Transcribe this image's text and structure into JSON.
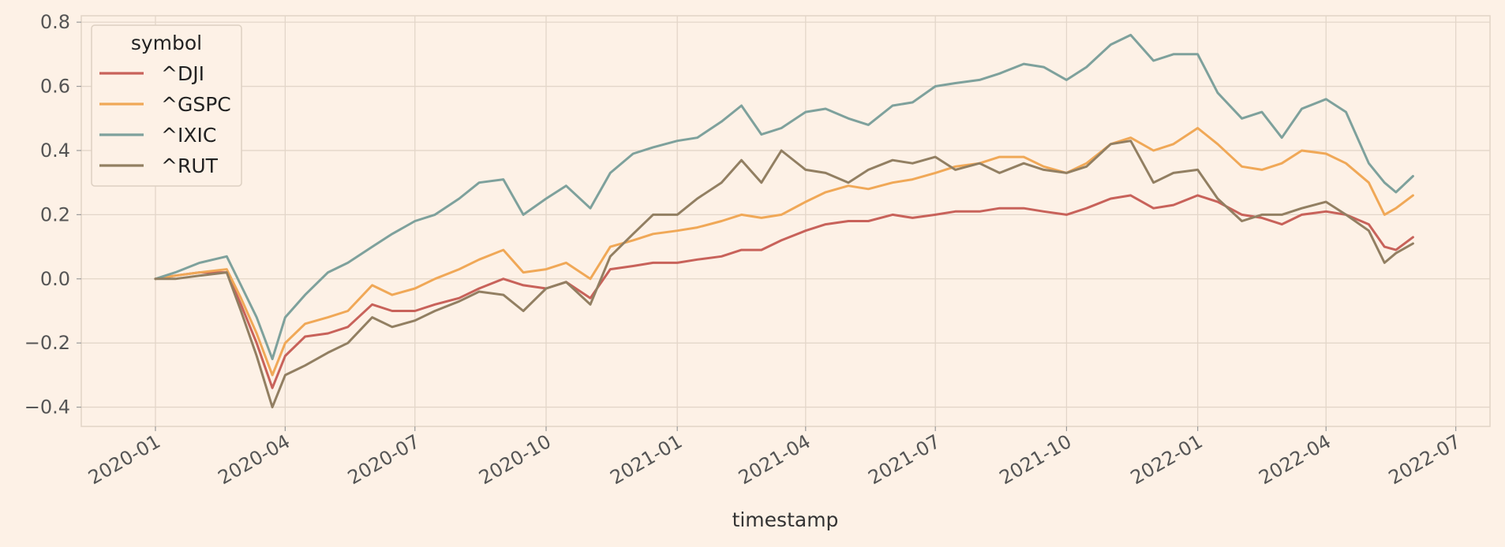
{
  "chart_data": {
    "type": "line",
    "title": "",
    "xlabel": "timestamp",
    "ylabel": "",
    "x_range": [
      "2019-11-10",
      "2022-07-25"
    ],
    "ylim": [
      -0.46,
      0.82
    ],
    "grid": true,
    "legend_position": "top-left",
    "legend_title": "symbol",
    "x_ticks": [
      "2020-01",
      "2020-04",
      "2020-07",
      "2020-10",
      "2021-01",
      "2021-04",
      "2021-07",
      "2021-10",
      "2022-01",
      "2022-04",
      "2022-07"
    ],
    "y_ticks": [
      -0.4,
      -0.2,
      0.0,
      0.2,
      0.4,
      0.6,
      0.8
    ],
    "y_tick_labels": [
      "−0.4",
      "−0.2",
      "0.0",
      "0.2",
      "0.4",
      "0.6",
      "0.8"
    ],
    "dates": [
      "2020-01-01",
      "2020-01-15",
      "2020-02-01",
      "2020-02-20",
      "2020-03-01",
      "2020-03-12",
      "2020-03-23",
      "2020-04-01",
      "2020-04-15",
      "2020-05-01",
      "2020-05-15",
      "2020-06-01",
      "2020-06-15",
      "2020-07-01",
      "2020-07-15",
      "2020-08-01",
      "2020-08-15",
      "2020-09-01",
      "2020-09-15",
      "2020-10-01",
      "2020-10-15",
      "2020-11-01",
      "2020-11-15",
      "2020-12-01",
      "2020-12-15",
      "2021-01-01",
      "2021-01-15",
      "2021-02-01",
      "2021-02-15",
      "2021-03-01",
      "2021-03-15",
      "2021-04-01",
      "2021-04-15",
      "2021-05-01",
      "2021-05-15",
      "2021-06-01",
      "2021-06-15",
      "2021-07-01",
      "2021-07-15",
      "2021-08-01",
      "2021-08-15",
      "2021-09-01",
      "2021-09-15",
      "2021-10-01",
      "2021-10-15",
      "2021-11-01",
      "2021-11-15",
      "2021-12-01",
      "2021-12-15",
      "2022-01-01",
      "2022-01-15",
      "2022-02-01",
      "2022-02-15",
      "2022-03-01",
      "2022-03-15",
      "2022-04-01",
      "2022-04-15",
      "2022-05-01",
      "2022-05-12",
      "2022-05-20",
      "2022-06-01"
    ],
    "series": [
      {
        "name": "^DJI",
        "color": "#c8625a",
        "values": [
          0.0,
          0.01,
          0.02,
          0.02,
          -0.08,
          -0.2,
          -0.34,
          -0.24,
          -0.18,
          -0.17,
          -0.15,
          -0.08,
          -0.1,
          -0.1,
          -0.08,
          -0.06,
          -0.03,
          0.0,
          -0.02,
          -0.03,
          -0.01,
          -0.06,
          0.03,
          0.04,
          0.05,
          0.05,
          0.06,
          0.07,
          0.09,
          0.09,
          0.12,
          0.15,
          0.17,
          0.18,
          0.18,
          0.2,
          0.19,
          0.2,
          0.21,
          0.21,
          0.22,
          0.22,
          0.21,
          0.2,
          0.22,
          0.25,
          0.26,
          0.22,
          0.23,
          0.26,
          0.24,
          0.2,
          0.19,
          0.17,
          0.2,
          0.21,
          0.2,
          0.17,
          0.1,
          0.09,
          0.13
        ]
      },
      {
        "name": "^GSPC",
        "color": "#f0a857",
        "values": [
          0.0,
          0.01,
          0.02,
          0.03,
          -0.06,
          -0.17,
          -0.3,
          -0.2,
          -0.14,
          -0.12,
          -0.1,
          -0.02,
          -0.05,
          -0.03,
          0.0,
          0.03,
          0.06,
          0.09,
          0.02,
          0.03,
          0.05,
          0.0,
          0.1,
          0.12,
          0.14,
          0.15,
          0.16,
          0.18,
          0.2,
          0.19,
          0.2,
          0.24,
          0.27,
          0.29,
          0.28,
          0.3,
          0.31,
          0.33,
          0.35,
          0.36,
          0.38,
          0.38,
          0.35,
          0.33,
          0.36,
          0.42,
          0.44,
          0.4,
          0.42,
          0.47,
          0.42,
          0.35,
          0.34,
          0.36,
          0.4,
          0.39,
          0.36,
          0.3,
          0.2,
          0.22,
          0.26
        ]
      },
      {
        "name": "^IXIC",
        "color": "#7ea19c",
        "values": [
          0.0,
          0.02,
          0.05,
          0.07,
          -0.02,
          -0.12,
          -0.25,
          -0.12,
          -0.05,
          0.02,
          0.05,
          0.1,
          0.14,
          0.18,
          0.2,
          0.25,
          0.3,
          0.31,
          0.2,
          0.25,
          0.29,
          0.22,
          0.33,
          0.39,
          0.41,
          0.43,
          0.44,
          0.49,
          0.54,
          0.45,
          0.47,
          0.52,
          0.53,
          0.5,
          0.48,
          0.54,
          0.55,
          0.6,
          0.61,
          0.62,
          0.64,
          0.67,
          0.66,
          0.62,
          0.66,
          0.73,
          0.76,
          0.68,
          0.7,
          0.7,
          0.58,
          0.5,
          0.52,
          0.44,
          0.53,
          0.56,
          0.52,
          0.36,
          0.3,
          0.27,
          0.32
        ]
      },
      {
        "name": "^RUT",
        "color": "#927f62",
        "values": [
          0.0,
          0.0,
          0.01,
          0.02,
          -0.1,
          -0.24,
          -0.4,
          -0.3,
          -0.27,
          -0.23,
          -0.2,
          -0.12,
          -0.15,
          -0.13,
          -0.1,
          -0.07,
          -0.04,
          -0.05,
          -0.1,
          -0.03,
          -0.01,
          -0.08,
          0.07,
          0.14,
          0.2,
          0.2,
          0.25,
          0.3,
          0.37,
          0.3,
          0.4,
          0.34,
          0.33,
          0.3,
          0.34,
          0.37,
          0.36,
          0.38,
          0.34,
          0.36,
          0.33,
          0.36,
          0.34,
          0.33,
          0.35,
          0.42,
          0.43,
          0.3,
          0.33,
          0.34,
          0.25,
          0.18,
          0.2,
          0.2,
          0.22,
          0.24,
          0.2,
          0.15,
          0.05,
          0.08,
          0.11
        ]
      }
    ]
  }
}
